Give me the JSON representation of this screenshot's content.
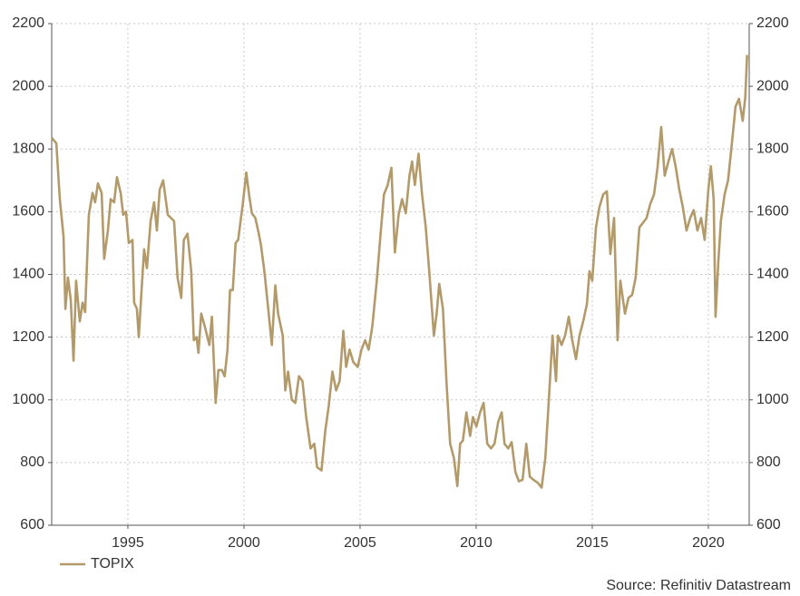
{
  "chart_data": {
    "type": "line",
    "x": [
      1991.72,
      1991.92,
      1992.07,
      1992.23,
      1992.31,
      1992.42,
      1992.54,
      1992.66,
      1992.77,
      1992.93,
      1993.05,
      1993.16,
      1993.32,
      1993.48,
      1993.59,
      1993.71,
      1993.87,
      1993.98,
      1994.14,
      1994.26,
      1994.41,
      1994.53,
      1994.69,
      1994.8,
      1994.92,
      1995.04,
      1995.2,
      1995.27,
      1995.39,
      1995.47,
      1995.59,
      1995.7,
      1995.82,
      1995.98,
      1996.13,
      1996.25,
      1996.37,
      1996.52,
      1996.72,
      1996.99,
      1997.14,
      1997.3,
      1997.41,
      1997.57,
      1997.73,
      1997.84,
      1997.96,
      1998.04,
      1998.16,
      1998.31,
      1998.51,
      1998.62,
      1998.78,
      1998.9,
      1999.05,
      1999.17,
      1999.29,
      1999.4,
      1999.52,
      1999.64,
      1999.75,
      1999.95,
      2000.1,
      2000.22,
      2000.34,
      2000.49,
      2000.61,
      2000.73,
      2000.88,
      2001.08,
      2001.2,
      2001.35,
      2001.47,
      2001.67,
      2001.78,
      2001.9,
      2002.06,
      2002.21,
      2002.37,
      2002.52,
      2002.68,
      2002.87,
      2003.03,
      2003.15,
      2003.34,
      2003.5,
      2003.65,
      2003.81,
      2003.97,
      2004.12,
      2004.28,
      2004.4,
      2004.55,
      2004.71,
      2004.9,
      2005.06,
      2005.22,
      2005.37,
      2005.53,
      2005.72,
      2005.88,
      2006.03,
      2006.19,
      2006.35,
      2006.5,
      2006.66,
      2006.81,
      2006.97,
      2007.13,
      2007.24,
      2007.36,
      2007.52,
      2007.67,
      2007.83,
      2007.98,
      2008.18,
      2008.3,
      2008.41,
      2008.57,
      2008.72,
      2008.88,
      2009.04,
      2009.19,
      2009.31,
      2009.43,
      2009.58,
      2009.74,
      2009.86,
      2010.01,
      2010.17,
      2010.32,
      2010.48,
      2010.64,
      2010.79,
      2010.95,
      2011.1,
      2011.22,
      2011.38,
      2011.53,
      2011.69,
      2011.84,
      2012.0,
      2012.16,
      2012.31,
      2012.47,
      2012.66,
      2012.82,
      2012.98,
      2013.13,
      2013.29,
      2013.44,
      2013.52,
      2013.68,
      2013.83,
      2013.99,
      2014.14,
      2014.3,
      2014.45,
      2014.61,
      2014.77,
      2014.88,
      2015.0,
      2015.16,
      2015.31,
      2015.47,
      2015.63,
      2015.78,
      2015.94,
      2016.09,
      2016.21,
      2016.41,
      2016.56,
      2016.72,
      2016.87,
      2017.03,
      2017.19,
      2017.34,
      2017.5,
      2017.66,
      2017.81,
      2017.97,
      2018.12,
      2018.28,
      2018.44,
      2018.59,
      2018.75,
      2018.9,
      2019.06,
      2019.22,
      2019.37,
      2019.53,
      2019.69,
      2019.84,
      2020.0,
      2020.11,
      2020.23,
      2020.31,
      2020.43,
      2020.54,
      2020.7,
      2020.85,
      2021.01,
      2021.17,
      2021.32,
      2021.48,
      2021.59,
      2021.67
    ],
    "series": [
      {
        "name": "TOPIX",
        "color": "#b39a6b",
        "values": [
          1836,
          1818,
          1640,
          1520,
          1290,
          1390,
          1320,
          1125,
          1380,
          1250,
          1310,
          1280,
          1590,
          1660,
          1630,
          1690,
          1660,
          1450,
          1540,
          1640,
          1630,
          1710,
          1660,
          1590,
          1600,
          1500,
          1510,
          1310,
          1290,
          1200,
          1350,
          1480,
          1420,
          1570,
          1630,
          1540,
          1670,
          1700,
          1590,
          1570,
          1390,
          1325,
          1510,
          1530,
          1410,
          1190,
          1200,
          1150,
          1275,
          1235,
          1175,
          1265,
          990,
          1095,
          1095,
          1075,
          1160,
          1350,
          1350,
          1500,
          1510,
          1625,
          1725,
          1655,
          1595,
          1580,
          1540,
          1495,
          1410,
          1265,
          1175,
          1365,
          1275,
          1205,
          1030,
          1090,
          1000,
          990,
          1075,
          1060,
          945,
          845,
          860,
          785,
          775,
          900,
          980,
          1090,
          1030,
          1060,
          1220,
          1105,
          1160,
          1120,
          1105,
          1160,
          1190,
          1160,
          1235,
          1380,
          1525,
          1655,
          1685,
          1740,
          1470,
          1590,
          1640,
          1595,
          1715,
          1760,
          1685,
          1785,
          1655,
          1550,
          1410,
          1205,
          1275,
          1370,
          1290,
          1060,
          860,
          815,
          725,
          860,
          870,
          960,
          885,
          945,
          915,
          960,
          990,
          860,
          845,
          860,
          930,
          960,
          860,
          845,
          865,
          770,
          740,
          745,
          860,
          755,
          745,
          735,
          720,
          815,
          1000,
          1205,
          1060,
          1205,
          1175,
          1205,
          1265,
          1190,
          1130,
          1205,
          1250,
          1305,
          1410,
          1380,
          1550,
          1615,
          1655,
          1665,
          1465,
          1580,
          1190,
          1380,
          1275,
          1325,
          1335,
          1390,
          1550,
          1565,
          1580,
          1625,
          1655,
          1740,
          1870,
          1715,
          1760,
          1800,
          1745,
          1670,
          1615,
          1540,
          1580,
          1605,
          1540,
          1580,
          1510,
          1670,
          1745,
          1640,
          1265,
          1440,
          1570,
          1655,
          1700,
          1815,
          1935,
          1960,
          1890,
          1965,
          2100
        ]
      }
    ],
    "xlim": [
      1991.72,
      2021.76
    ],
    "xticks": [
      1995,
      2000,
      2005,
      2010,
      2015,
      2020
    ],
    "ylim": [
      600,
      2200
    ],
    "yticks": [
      600,
      800,
      1000,
      1200,
      1400,
      1600,
      1800,
      2000,
      2200
    ],
    "y2lim": [
      600,
      2200
    ],
    "y2ticks": [
      600,
      800,
      1000,
      1200,
      1400,
      1600,
      1800,
      2000,
      2200
    ],
    "grid": true,
    "legend": "bottom-left",
    "source": "Source: Refinitiv Datastream"
  }
}
